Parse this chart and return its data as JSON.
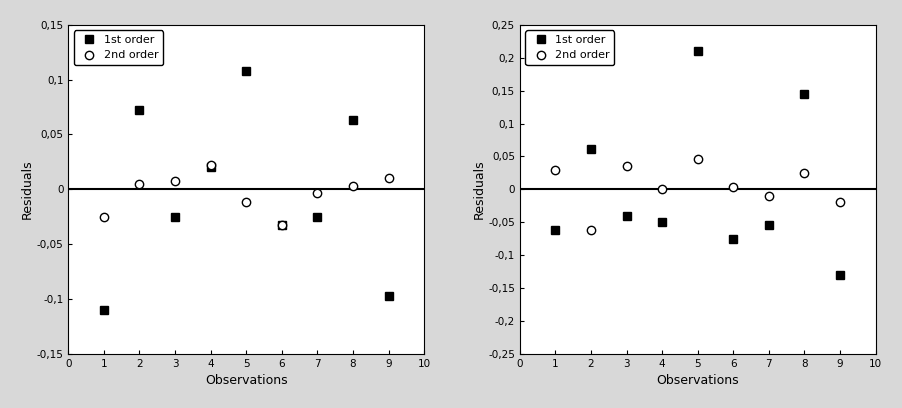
{
  "chart_A": {
    "first_order_x": [
      1,
      2,
      3,
      4,
      5,
      6,
      7,
      8,
      9
    ],
    "first_order_y": [
      -0.11,
      0.072,
      -0.025,
      0.02,
      0.108,
      -0.033,
      -0.025,
      0.063,
      -0.097
    ],
    "second_order_x": [
      1,
      2,
      3,
      4,
      5,
      6,
      7,
      8,
      9
    ],
    "second_order_y": [
      -0.025,
      0.005,
      0.008,
      0.022,
      -0.012,
      -0.033,
      -0.003,
      0.003,
      0.01
    ],
    "ylim": [
      -0.15,
      0.15
    ],
    "yticks": [
      -0.15,
      -0.1,
      -0.05,
      0.0,
      0.05,
      0.1,
      0.15
    ],
    "ytick_labels": [
      "-0,15",
      "-0,1",
      "-0,05",
      "0",
      "0,05",
      "0,1",
      "0,15"
    ],
    "xlim": [
      0,
      10
    ],
    "xticks": [
      0,
      1,
      2,
      3,
      4,
      5,
      6,
      7,
      8,
      9,
      10
    ],
    "xtick_labels": [
      "0",
      "1",
      "2",
      "3",
      "4",
      "5",
      "6",
      "7",
      "8",
      "9",
      "10"
    ],
    "xlabel": "Observations",
    "ylabel": "Residuals"
  },
  "chart_B": {
    "first_order_x": [
      1,
      2,
      3,
      4,
      5,
      6,
      7,
      8,
      9
    ],
    "first_order_y": [
      -0.062,
      0.062,
      -0.04,
      -0.05,
      0.21,
      -0.075,
      -0.055,
      0.145,
      -0.13
    ],
    "second_order_x": [
      1,
      2,
      3,
      4,
      5,
      6,
      7,
      8,
      9
    ],
    "second_order_y": [
      0.03,
      -0.062,
      0.035,
      0.0,
      0.046,
      0.003,
      -0.01,
      0.025,
      -0.02
    ],
    "ylim": [
      -0.25,
      0.25
    ],
    "yticks": [
      -0.25,
      -0.2,
      -0.15,
      -0.1,
      -0.05,
      0.0,
      0.05,
      0.1,
      0.15,
      0.2,
      0.25
    ],
    "ytick_labels": [
      "-0,25",
      "-0,2",
      "-0,15",
      "-0,1",
      "-0,05",
      "0",
      "0,05",
      "0,1",
      "0,15",
      "0,2",
      "0,25"
    ],
    "xlim": [
      0,
      10
    ],
    "xticks": [
      0,
      1,
      2,
      3,
      4,
      5,
      6,
      7,
      8,
      9,
      10
    ],
    "xtick_labels": [
      "0",
      "1",
      "2",
      "3",
      "4",
      "5",
      "6",
      "7",
      "8",
      "9",
      "10"
    ],
    "xlabel": "Observations",
    "ylabel": "Residuals"
  },
  "legend_labels": [
    "1st order",
    "2nd order"
  ],
  "outer_bg_color": "#d8d8d8",
  "plot_bg_color": "#ffffff",
  "marker_first": "s",
  "marker_second": "o",
  "marker_color_first": "#000000",
  "marker_color_second": "#ffffff",
  "marker_edge_second": "#000000",
  "markersize": 6,
  "hline_color": "#000000",
  "hline_lw": 1.5,
  "tick_fontsize": 7.5,
  "label_fontsize": 9,
  "legend_fontsize": 8
}
